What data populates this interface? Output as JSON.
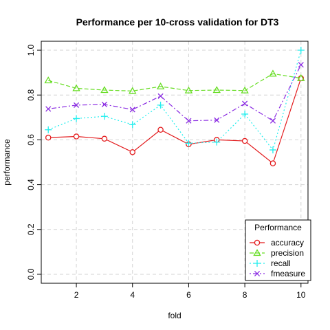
{
  "chart_data": {
    "type": "line",
    "title": "Performance per 10-cross validation for DT3",
    "xlabel": "fold",
    "ylabel": "performance",
    "x": [
      1,
      2,
      3,
      4,
      5,
      6,
      7,
      8,
      9,
      10
    ],
    "xlim": [
      0.75,
      10.25
    ],
    "ylim": [
      -0.04,
      1.04
    ],
    "xticks": [
      2,
      4,
      6,
      8,
      10
    ],
    "yticks": [
      0.0,
      0.2,
      0.4,
      0.6,
      0.8,
      1.0
    ],
    "xtick_labels": [
      "2",
      "4",
      "6",
      "8",
      "10"
    ],
    "ytick_labels": [
      "0.0",
      "0.2",
      "0.4",
      "0.6",
      "0.8",
      "1.0"
    ],
    "grid": true,
    "legend": {
      "title": "Performance",
      "position": "bottom-right"
    },
    "series": [
      {
        "name": "accuracy",
        "color": "#e31a1c",
        "marker": "circle",
        "dash": "solid",
        "values": [
          0.61,
          0.615,
          0.605,
          0.545,
          0.645,
          0.58,
          0.6,
          0.595,
          0.495,
          0.875
        ]
      },
      {
        "name": "precision",
        "color": "#66dd22",
        "marker": "triangle",
        "dash": "dashed",
        "values": [
          0.865,
          0.83,
          0.822,
          0.818,
          0.838,
          0.82,
          0.822,
          0.82,
          0.895,
          0.875
        ]
      },
      {
        "name": "recall",
        "color": "#22eeee",
        "marker": "plus",
        "dash": "dotted",
        "values": [
          0.645,
          0.695,
          0.705,
          0.668,
          0.755,
          0.585,
          0.59,
          0.715,
          0.555,
          1.0
        ]
      },
      {
        "name": "fmeasure",
        "color": "#8a2be2",
        "marker": "cross",
        "dash": "dotdash",
        "values": [
          0.738,
          0.755,
          0.758,
          0.735,
          0.795,
          0.685,
          0.688,
          0.762,
          0.685,
          0.935
        ]
      }
    ]
  }
}
